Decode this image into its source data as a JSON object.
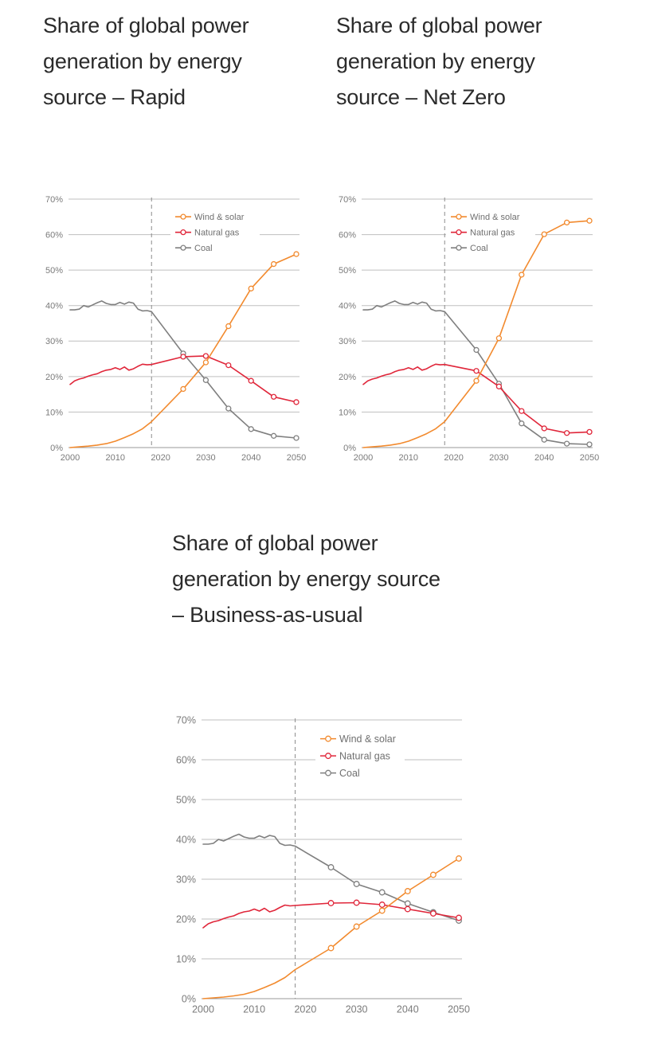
{
  "colors": {
    "wind_solar": "#f28a2e",
    "natural_gas": "#e0263a",
    "coal": "#7f7f7f",
    "grid": "#bfbfbf",
    "tick_text": "#7a7a7a",
    "divider": "#8c8c8c"
  },
  "chart_data": [
    {
      "type": "line",
      "title": "Share of global power\ngeneration by energy\nsource – Rapid",
      "xlim": [
        2000,
        2050
      ],
      "ylim": [
        0,
        70
      ],
      "x_ticks": [
        "2000",
        "2010",
        "2020",
        "2030",
        "2040",
        "2050"
      ],
      "y_ticks": [
        "0%",
        "10%",
        "20%",
        "30%",
        "40%",
        "50%",
        "60%",
        "70%"
      ],
      "grid": true,
      "legend": "top-center",
      "reference_line_x": 2018,
      "series": [
        {
          "name": "Wind & solar",
          "x": [
            2000,
            2002,
            2004,
            2006,
            2008,
            2010,
            2012,
            2014,
            2016,
            2018,
            2025,
            2030,
            2035,
            2040,
            2045,
            2050
          ],
          "y": [
            0,
            0.2,
            0.4,
            0.7,
            1.1,
            1.8,
            2.8,
            3.9,
            5.3,
            7.3,
            16.5,
            24,
            34.2,
            44.8,
            51.7,
            54.5
          ],
          "markers_from": 10
        },
        {
          "name": "Natural gas",
          "x": [
            2000,
            2001,
            2002,
            2003,
            2004,
            2005,
            2006,
            2007,
            2008,
            2009,
            2010,
            2011,
            2012,
            2013,
            2014,
            2015,
            2016,
            2017,
            2018,
            2025,
            2030,
            2035,
            2040,
            2045,
            2050
          ],
          "y": [
            17.8,
            18.8,
            19.3,
            19.6,
            20.1,
            20.5,
            20.8,
            21.4,
            21.8,
            22,
            22.5,
            22,
            22.7,
            21.8,
            22.2,
            22.9,
            23.5,
            23.3,
            23.4,
            25.6,
            25.8,
            23.2,
            18.8,
            14.3,
            12.8
          ],
          "markers_from": 19
        },
        {
          "name": "Coal",
          "x": [
            2000,
            2001,
            2002,
            2003,
            2004,
            2005,
            2006,
            2007,
            2008,
            2009,
            2010,
            2011,
            2012,
            2013,
            2014,
            2015,
            2016,
            2017,
            2018,
            2025,
            2030,
            2035,
            2040,
            2045,
            2050
          ],
          "y": [
            38.8,
            38.8,
            39,
            40,
            39.6,
            40.2,
            40.8,
            41.3,
            40.6,
            40.3,
            40.3,
            40.9,
            40.4,
            41,
            40.7,
            39,
            38.5,
            38.6,
            38.3,
            26.5,
            19,
            11,
            5.2,
            3.3,
            2.7
          ],
          "markers_from": 19
        }
      ]
    },
    {
      "type": "line",
      "title": "Share of global power\ngeneration by energy\nsource – Net Zero",
      "xlim": [
        2000,
        2050
      ],
      "ylim": [
        0,
        70
      ],
      "x_ticks": [
        "2000",
        "2010",
        "2020",
        "2030",
        "2040",
        "2050"
      ],
      "y_ticks": [
        "0%",
        "10%",
        "20%",
        "30%",
        "40%",
        "50%",
        "60%",
        "70%"
      ],
      "grid": true,
      "legend": "top-center",
      "reference_line_x": 2018,
      "series": [
        {
          "name": "Wind & solar",
          "x": [
            2000,
            2002,
            2004,
            2006,
            2008,
            2010,
            2012,
            2014,
            2016,
            2018,
            2025,
            2030,
            2035,
            2040,
            2045,
            2050
          ],
          "y": [
            0,
            0.2,
            0.4,
            0.7,
            1.1,
            1.8,
            2.8,
            3.9,
            5.3,
            7.3,
            18.8,
            30.8,
            48.7,
            60.1,
            63.4,
            63.9
          ],
          "markers_from": 10
        },
        {
          "name": "Natural gas",
          "x": [
            2000,
            2001,
            2002,
            2003,
            2004,
            2005,
            2006,
            2007,
            2008,
            2009,
            2010,
            2011,
            2012,
            2013,
            2014,
            2015,
            2016,
            2017,
            2018,
            2025,
            2030,
            2035,
            2040,
            2045,
            2050
          ],
          "y": [
            17.8,
            18.8,
            19.3,
            19.6,
            20.1,
            20.5,
            20.8,
            21.4,
            21.8,
            22,
            22.5,
            22,
            22.7,
            21.8,
            22.2,
            22.9,
            23.5,
            23.3,
            23.4,
            21.6,
            17.2,
            10.3,
            5.4,
            4.1,
            4.4
          ],
          "markers_from": 19
        },
        {
          "name": "Coal",
          "x": [
            2000,
            2001,
            2002,
            2003,
            2004,
            2005,
            2006,
            2007,
            2008,
            2009,
            2010,
            2011,
            2012,
            2013,
            2014,
            2015,
            2016,
            2017,
            2018,
            2025,
            2030,
            2035,
            2040,
            2045,
            2050
          ],
          "y": [
            38.8,
            38.8,
            39,
            40,
            39.6,
            40.2,
            40.8,
            41.3,
            40.6,
            40.3,
            40.3,
            40.9,
            40.4,
            41,
            40.7,
            39,
            38.5,
            38.6,
            38.3,
            27.5,
            18,
            6.8,
            2.2,
            1.1,
            0.9
          ],
          "markers_from": 19
        }
      ]
    },
    {
      "type": "line",
      "title": "Share of global power\ngeneration by energy source\n– Business-as-usual",
      "xlim": [
        2000,
        2050
      ],
      "ylim": [
        0,
        70
      ],
      "x_ticks": [
        "2000",
        "2010",
        "2020",
        "2030",
        "2040",
        "2050"
      ],
      "y_ticks": [
        "0%",
        "10%",
        "20%",
        "30%",
        "40%",
        "50%",
        "60%",
        "70%"
      ],
      "grid": true,
      "legend": "top-center",
      "reference_line_x": 2018,
      "series": [
        {
          "name": "Wind & solar",
          "x": [
            2000,
            2002,
            2004,
            2006,
            2008,
            2010,
            2012,
            2014,
            2016,
            2018,
            2025,
            2030,
            2035,
            2040,
            2045,
            2050
          ],
          "y": [
            0,
            0.2,
            0.4,
            0.7,
            1.1,
            1.8,
            2.8,
            3.9,
            5.3,
            7.3,
            12.7,
            18.1,
            22.1,
            27,
            31.1,
            35.2
          ],
          "markers_from": 10
        },
        {
          "name": "Natural gas",
          "x": [
            2000,
            2001,
            2002,
            2003,
            2004,
            2005,
            2006,
            2007,
            2008,
            2009,
            2010,
            2011,
            2012,
            2013,
            2014,
            2015,
            2016,
            2017,
            2018,
            2025,
            2030,
            2035,
            2040,
            2045,
            2050
          ],
          "y": [
            17.8,
            18.8,
            19.3,
            19.6,
            20.1,
            20.5,
            20.8,
            21.4,
            21.8,
            22,
            22.5,
            22,
            22.7,
            21.8,
            22.2,
            22.9,
            23.5,
            23.3,
            23.4,
            24,
            24.1,
            23.6,
            22.5,
            21.4,
            20.3
          ],
          "markers_from": 19
        },
        {
          "name": "Coal",
          "x": [
            2000,
            2001,
            2002,
            2003,
            2004,
            2005,
            2006,
            2007,
            2008,
            2009,
            2010,
            2011,
            2012,
            2013,
            2014,
            2015,
            2016,
            2017,
            2018,
            2025,
            2030,
            2035,
            2040,
            2045,
            2050
          ],
          "y": [
            38.8,
            38.8,
            39,
            40,
            39.6,
            40.2,
            40.8,
            41.3,
            40.6,
            40.3,
            40.3,
            40.9,
            40.4,
            41,
            40.7,
            39,
            38.5,
            38.6,
            38.3,
            33,
            28.8,
            26.7,
            23.9,
            21.7,
            19.6
          ],
          "markers_from": 19
        }
      ]
    }
  ]
}
